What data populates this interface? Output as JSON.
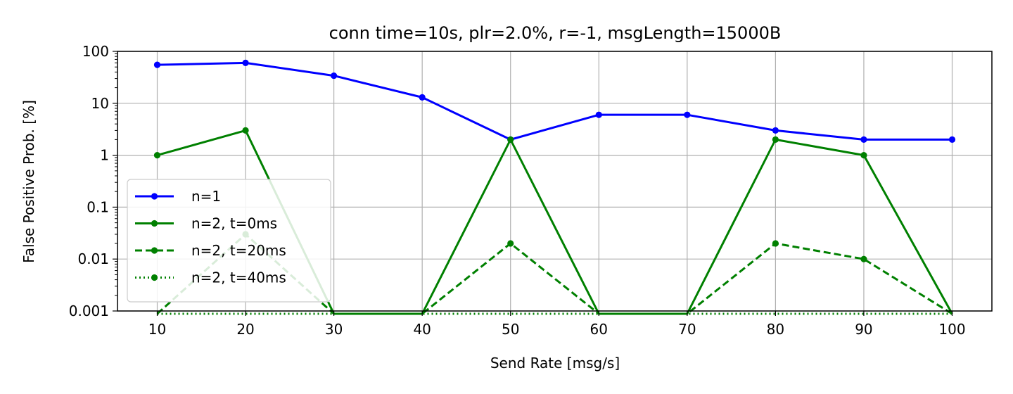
{
  "chart_data": {
    "type": "line",
    "title": "conn time=10s, plr=2.0%, r=-1, msgLength=15000B",
    "xlabel": "Send Rate [msg/s]",
    "ylabel": "False Positive Prob. [%]",
    "yscale": "log",
    "ylim": [
      0.001,
      100
    ],
    "xlim": [
      5.5,
      104.5
    ],
    "xticks": [
      10,
      20,
      30,
      40,
      50,
      60,
      70,
      80,
      90,
      100
    ],
    "xtick_labels": [
      "10",
      "20",
      "30",
      "40",
      "50",
      "60",
      "70",
      "80",
      "90",
      "100"
    ],
    "yticks": [
      0.001,
      0.01,
      0.1,
      1,
      10,
      100
    ],
    "ytick_labels": [
      "0.001",
      "0.01",
      "0.1",
      "1",
      "10",
      "100"
    ],
    "grid": true,
    "legend_position": "lower-left",
    "x": [
      10,
      20,
      30,
      40,
      50,
      60,
      70,
      80,
      90,
      100
    ],
    "series": [
      {
        "name": "n=1",
        "color": "#0000ff",
        "linestyle": "solid",
        "values": [
          55,
          60,
          34,
          13,
          2,
          6,
          6,
          3,
          2,
          2
        ]
      },
      {
        "name": "n=2, t=0ms",
        "color": "#008000",
        "linestyle": "solid",
        "values": [
          1,
          3,
          0,
          0,
          2,
          0,
          0,
          2,
          1,
          0
        ]
      },
      {
        "name": "n=2, t=20ms",
        "color": "#008000",
        "linestyle": "dashed",
        "values": [
          0,
          0.03,
          0,
          0,
          0.02,
          0,
          0,
          0.02,
          0.01,
          0
        ]
      },
      {
        "name": "n=2, t=40ms",
        "color": "#008000",
        "linestyle": "dotted",
        "values": [
          0,
          0,
          0,
          0,
          0,
          0,
          0,
          0,
          0,
          0
        ]
      }
    ]
  }
}
